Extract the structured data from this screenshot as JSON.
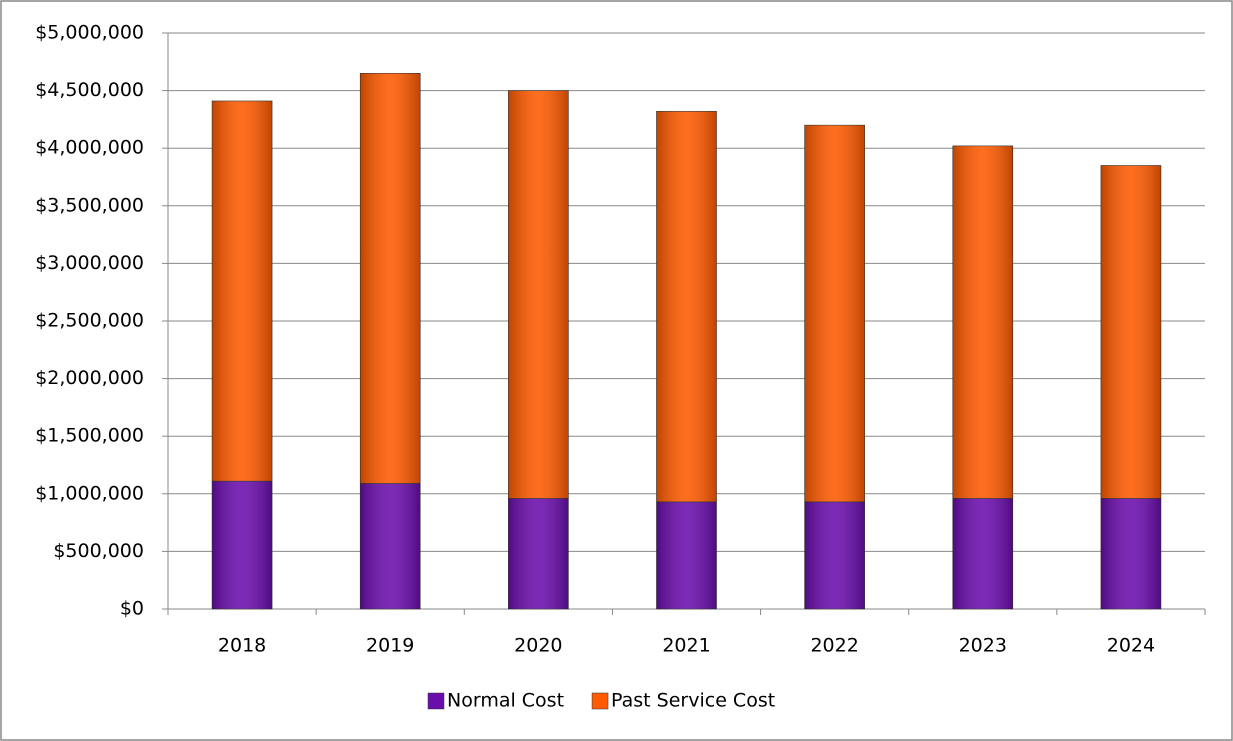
{
  "chart_data": {
    "type": "stacked_bar",
    "categories": [
      "2018",
      "2019",
      "2020",
      "2021",
      "2022",
      "2023",
      "2024"
    ],
    "series": [
      {
        "name": "Normal Cost",
        "color": "#6a0dad",
        "values": [
          1110000,
          1090000,
          960000,
          930000,
          930000,
          960000,
          960000
        ]
      },
      {
        "name": "Past Service Cost",
        "color": "#ff5a00",
        "values": [
          3300000,
          3560000,
          3540000,
          3390000,
          3270000,
          3060000,
          2890000
        ]
      }
    ],
    "ylim": [
      0,
      5000000
    ],
    "yticks": [
      {
        "value": 0,
        "label": "$0"
      },
      {
        "value": 500000,
        "label": "$500,000"
      },
      {
        "value": 1000000,
        "label": "$1,000,000"
      },
      {
        "value": 1500000,
        "label": "$1,500,000"
      },
      {
        "value": 2000000,
        "label": "$2,000,000"
      },
      {
        "value": 2500000,
        "label": "$2,500,000"
      },
      {
        "value": 3000000,
        "label": "$3,000,000"
      },
      {
        "value": 3500000,
        "label": "$3,500,000"
      },
      {
        "value": 4000000,
        "label": "$4,000,000"
      },
      {
        "value": 4500000,
        "label": "$4,500,000"
      },
      {
        "value": 5000000,
        "label": "$5,000,000"
      }
    ],
    "grid": true,
    "legend": "bottom"
  }
}
